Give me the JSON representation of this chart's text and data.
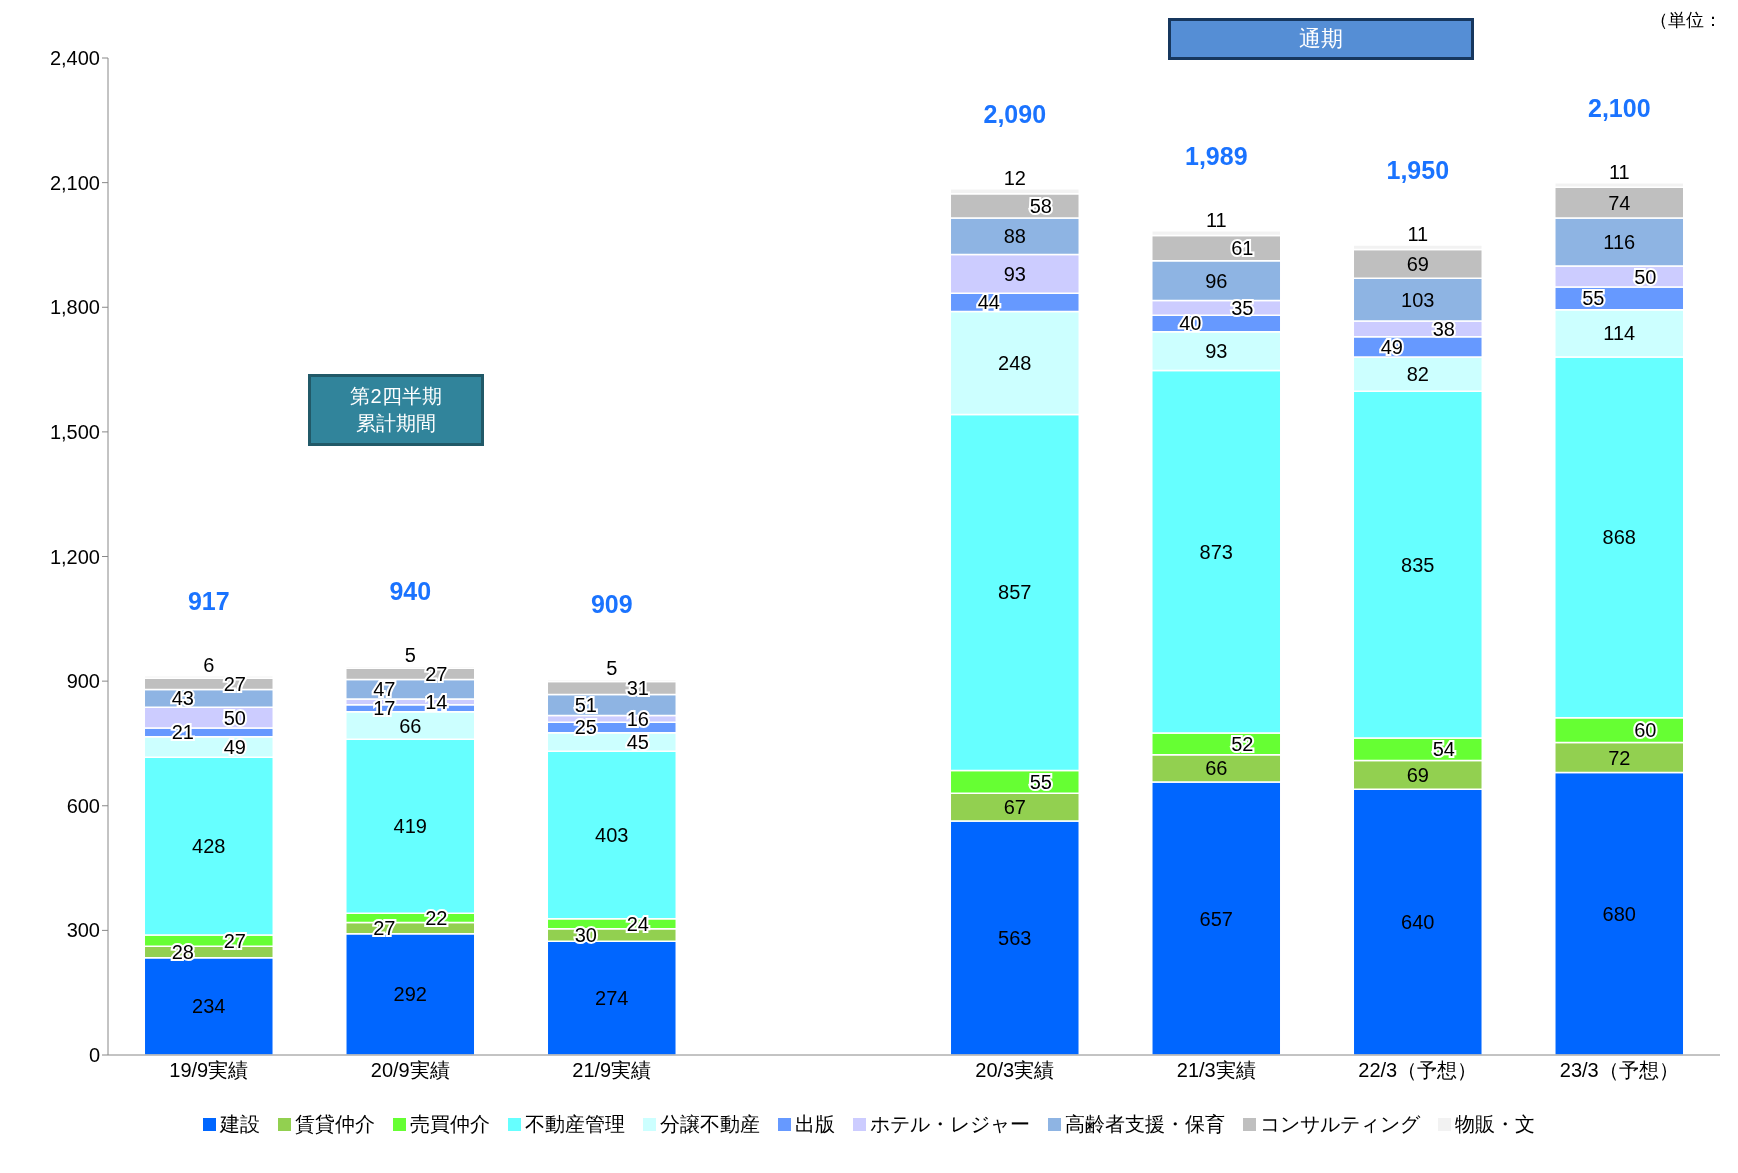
{
  "chart_data": {
    "type": "bar",
    "stacked": true,
    "categories": [
      "19/9実績",
      "20/9実績",
      "21/9実績",
      null,
      "20/3実績",
      "21/3実績",
      "22/3（予想）",
      "23/3（予想）"
    ],
    "series": [
      {
        "name": "建設",
        "color": "#0066ff",
        "values": [
          234,
          292,
          274,
          null,
          563,
          657,
          640,
          680
        ]
      },
      {
        "name": "賃貸仲介",
        "color": "#92d050",
        "values": [
          28,
          27,
          30,
          null,
          67,
          66,
          69,
          72
        ]
      },
      {
        "name": "売買仲介",
        "color": "#66ff33",
        "values": [
          27,
          22,
          24,
          null,
          55,
          52,
          54,
          60
        ]
      },
      {
        "name": "不動産管理",
        "color": "#66ffff",
        "values": [
          428,
          419,
          403,
          null,
          857,
          873,
          835,
          868
        ]
      },
      {
        "name": "分譲不動産",
        "color": "#ccffff",
        "values": [
          49,
          66,
          45,
          null,
          248,
          93,
          82,
          114
        ]
      },
      {
        "name": "出版",
        "color": "#6699ff",
        "values": [
          21,
          17,
          25,
          null,
          44,
          40,
          49,
          55
        ]
      },
      {
        "name": "ホテル・レジャー",
        "color": "#ccccff",
        "values": [
          50,
          14,
          16,
          null,
          93,
          35,
          38,
          50
        ]
      },
      {
        "name": "高齢者支援・保育",
        "color": "#8eb4e3",
        "values": [
          43,
          47,
          51,
          null,
          88,
          96,
          103,
          116
        ]
      },
      {
        "name": "コンサルティング",
        "color": "#bfbfbf",
        "values": [
          27,
          27,
          31,
          null,
          58,
          61,
          69,
          74
        ]
      },
      {
        "name": "物販・文",
        "color": "#f2f2f2",
        "values": [
          6,
          5,
          5,
          null,
          12,
          11,
          11,
          11
        ]
      }
    ],
    "totals": [
      "917",
      "940",
      "909",
      null,
      "2,090",
      "1,989",
      "1,950",
      "2,100"
    ],
    "data_labels": true,
    "ylim": [
      0,
      2400
    ],
    "yticks": [
      0,
      300,
      600,
      900,
      {
        "value": 1200,
        "label": "1,200"
      },
      {
        "value": 1500,
        "label": "1,500"
      },
      {
        "value": 1800,
        "label": "1,800"
      },
      {
        "value": 2100,
        "label": "2,100"
      },
      {
        "value": 2400,
        "label": "2,400"
      }
    ],
    "grid": false,
    "legend": "bottom",
    "annotations": [
      "（単位：",
      "第2四半期累計期間",
      "通期"
    ]
  }
}
